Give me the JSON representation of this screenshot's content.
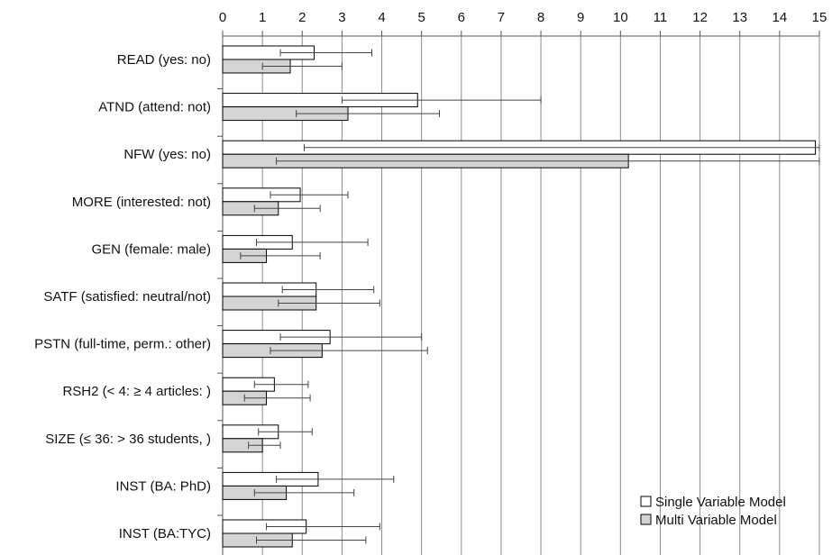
{
  "chart_data": {
    "type": "bar",
    "orientation": "horizontal",
    "xlim": [
      0,
      15
    ],
    "x_ticks": [
      "0",
      "1",
      "2",
      "3",
      "4",
      "5",
      "6",
      "7",
      "8",
      "9",
      "10",
      "11",
      "12",
      "13",
      "14",
      "15"
    ],
    "x_axis_position": "top",
    "grid": "vertical",
    "legend_position": "bottom-right",
    "categories": [
      "READ (yes: no)",
      "ATND (attend: not)",
      "NFW (yes: no)",
      "MORE (interested: not)",
      "GEN (female: male)",
      "SATF (satisfied: neutral/not)",
      "PSTN (full-time, perm.: other)",
      "RSH2 (< 4: ≥ 4 articles: )",
      "SIZE (≤  36: > 36 students, )",
      "INST (BA: PhD)",
      "INST (BA:TYC)"
    ],
    "series": [
      {
        "name": "Single Variable Model",
        "color": "#ffffff",
        "values": [
          2.3,
          4.9,
          14.9,
          1.95,
          1.75,
          2.35,
          2.7,
          1.3,
          1.4,
          2.4,
          2.1
        ],
        "ci_low": [
          1.45,
          3.0,
          2.05,
          1.2,
          0.85,
          1.5,
          1.45,
          0.8,
          0.9,
          1.35,
          1.1
        ],
        "ci_high": [
          3.75,
          8.0,
          15.0,
          3.15,
          3.65,
          3.8,
          5.0,
          2.15,
          2.25,
          4.3,
          3.95
        ]
      },
      {
        "name": "Multi Variable Model",
        "color": "#d4d4d4",
        "values": [
          1.7,
          3.15,
          10.2,
          1.4,
          1.1,
          2.35,
          2.5,
          1.1,
          1.0,
          1.6,
          1.75
        ],
        "ci_low": [
          1.0,
          1.85,
          1.35,
          0.8,
          0.45,
          1.4,
          1.2,
          0.55,
          0.65,
          0.8,
          0.85
        ],
        "ci_high": [
          3.0,
          5.45,
          15.0,
          2.45,
          2.45,
          3.95,
          5.15,
          2.2,
          1.45,
          3.3,
          3.6
        ]
      }
    ]
  }
}
